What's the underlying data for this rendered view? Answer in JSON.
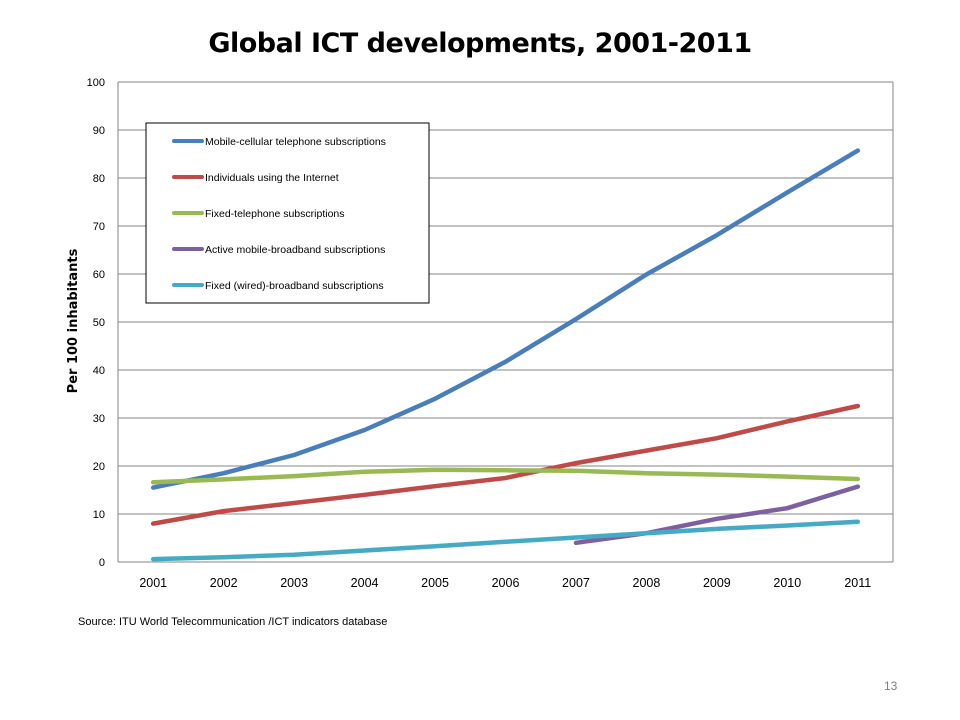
{
  "slide": {
    "source": "Source:  ITU World Telecommunication /ICT indicators database",
    "page_number": "13"
  },
  "chart_data": {
    "type": "line",
    "title": "Global ICT developments, 2001-2011",
    "xlabel": "",
    "ylabel": "Per 100 inhabitants",
    "ylim": [
      0,
      100
    ],
    "yticks": [
      "0",
      "10",
      "20",
      "30",
      "40",
      "50",
      "60",
      "70",
      "80",
      "90",
      "100"
    ],
    "x": [
      "2001",
      "2002",
      "2003",
      "2004",
      "2005",
      "2006",
      "2007",
      "2008",
      "2009",
      "2010",
      "2011"
    ],
    "grid": "horizontal",
    "legend_position": "top-left",
    "series": [
      {
        "name": "Mobile-cellular telephone subscriptions",
        "color": "#4a7ebb",
        "values": [
          15.5,
          18.5,
          22.3,
          27.5,
          34,
          41.7,
          50.6,
          59.9,
          68.1,
          77,
          85.7
        ]
      },
      {
        "name": "Individuals using the Internet",
        "color": "#be4b48",
        "values": [
          8,
          10.6,
          12.3,
          14,
          15.8,
          17.5,
          20.6,
          23.2,
          25.8,
          29.3,
          32.5
        ]
      },
      {
        "name": "Fixed-telephone subscriptions",
        "color": "#98b954",
        "values": [
          16.6,
          17.2,
          17.9,
          18.8,
          19.2,
          19.1,
          19,
          18.5,
          18.2,
          17.8,
          17.3
        ]
      },
      {
        "name": "Active mobile-broadband subscriptions",
        "color": "#7d60a0",
        "values": [
          null,
          null,
          null,
          null,
          null,
          null,
          4,
          6,
          9,
          11.2,
          15.7
        ]
      },
      {
        "name": "Fixed (wired)-broadband subscriptions",
        "color": "#46aac5",
        "values": [
          0.6,
          1,
          1.5,
          2.4,
          3.3,
          4.2,
          5.1,
          6,
          6.9,
          7.6,
          8.4
        ]
      }
    ]
  }
}
